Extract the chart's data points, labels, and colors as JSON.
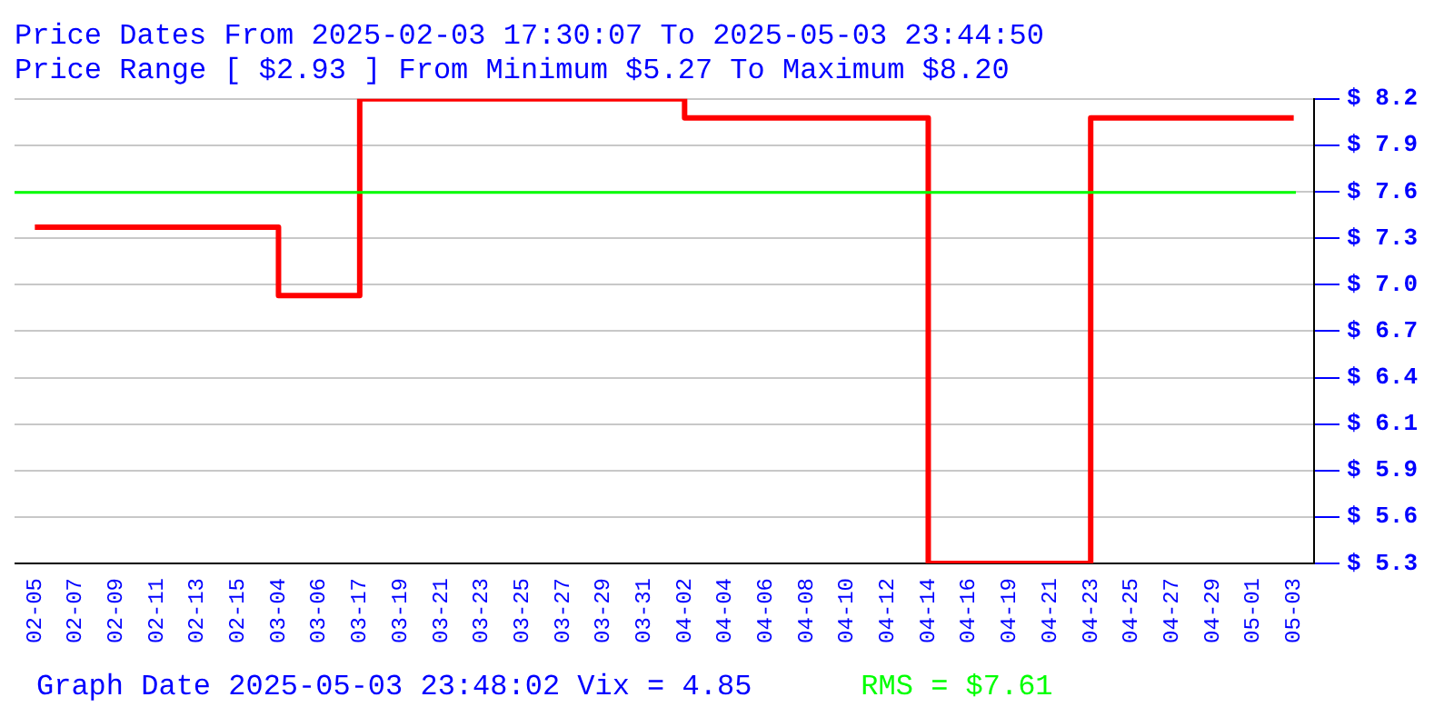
{
  "chart_data": {
    "type": "step",
    "title": "Price Dates From 2025-02-03 17:30:07 To 2025-05-03 23:44:50",
    "subtitle": "Price Range [ $2.93 ] From Minimum $5.27 To Maximum $8.20",
    "categories": [
      "02-05",
      "02-07",
      "02-09",
      "02-11",
      "02-13",
      "02-15",
      "03-04",
      "03-06",
      "03-17",
      "03-19",
      "03-21",
      "03-23",
      "03-25",
      "03-27",
      "03-29",
      "03-31",
      "04-02",
      "04-04",
      "04-06",
      "04-08",
      "04-10",
      "04-12",
      "04-14",
      "04-16",
      "04-19",
      "04-21",
      "04-23",
      "04-25",
      "04-27",
      "04-29",
      "05-01",
      "05-03"
    ],
    "series": [
      {
        "color": "#ff0000",
        "values": [
          7.39,
          7.39,
          7.39,
          7.39,
          7.39,
          7.39,
          6.96,
          6.96,
          8.2,
          8.2,
          8.2,
          8.2,
          8.2,
          8.2,
          8.2,
          8.2,
          8.08,
          8.08,
          8.08,
          8.08,
          8.08,
          8.08,
          5.27,
          5.27,
          5.27,
          5.27,
          8.08,
          8.08,
          8.08,
          8.08,
          8.08,
          8.08
        ]
      }
    ],
    "ylim": [
      5.27,
      8.2
    ],
    "yticks": [
      {
        "value": 5.27,
        "label": "$ 5.3"
      },
      {
        "value": 5.563,
        "label": "$ 5.6"
      },
      {
        "value": 5.856,
        "label": "$ 5.9"
      },
      {
        "value": 6.149,
        "label": "$ 6.1"
      },
      {
        "value": 6.442,
        "label": "$ 6.4"
      },
      {
        "value": 6.735,
        "label": "$ 6.7"
      },
      {
        "value": 7.028,
        "label": "$ 7.0"
      },
      {
        "value": 7.321,
        "label": "$ 7.3"
      },
      {
        "value": 7.614,
        "label": "$ 7.6"
      },
      {
        "value": 7.907,
        "label": "$ 7.9"
      },
      {
        "value": 8.2,
        "label": "$ 8.2"
      }
    ],
    "ref_lines": [
      {
        "axis": "y",
        "value": 7.61,
        "label": "RMS = $7.61",
        "color": "#00ff00"
      }
    ],
    "annotations": [
      "Graph Date 2025-05-03 23:48:02 Vix = 4.85"
    ],
    "grid": "y",
    "legend": false,
    "marker": "none",
    "line_style": "solid"
  }
}
